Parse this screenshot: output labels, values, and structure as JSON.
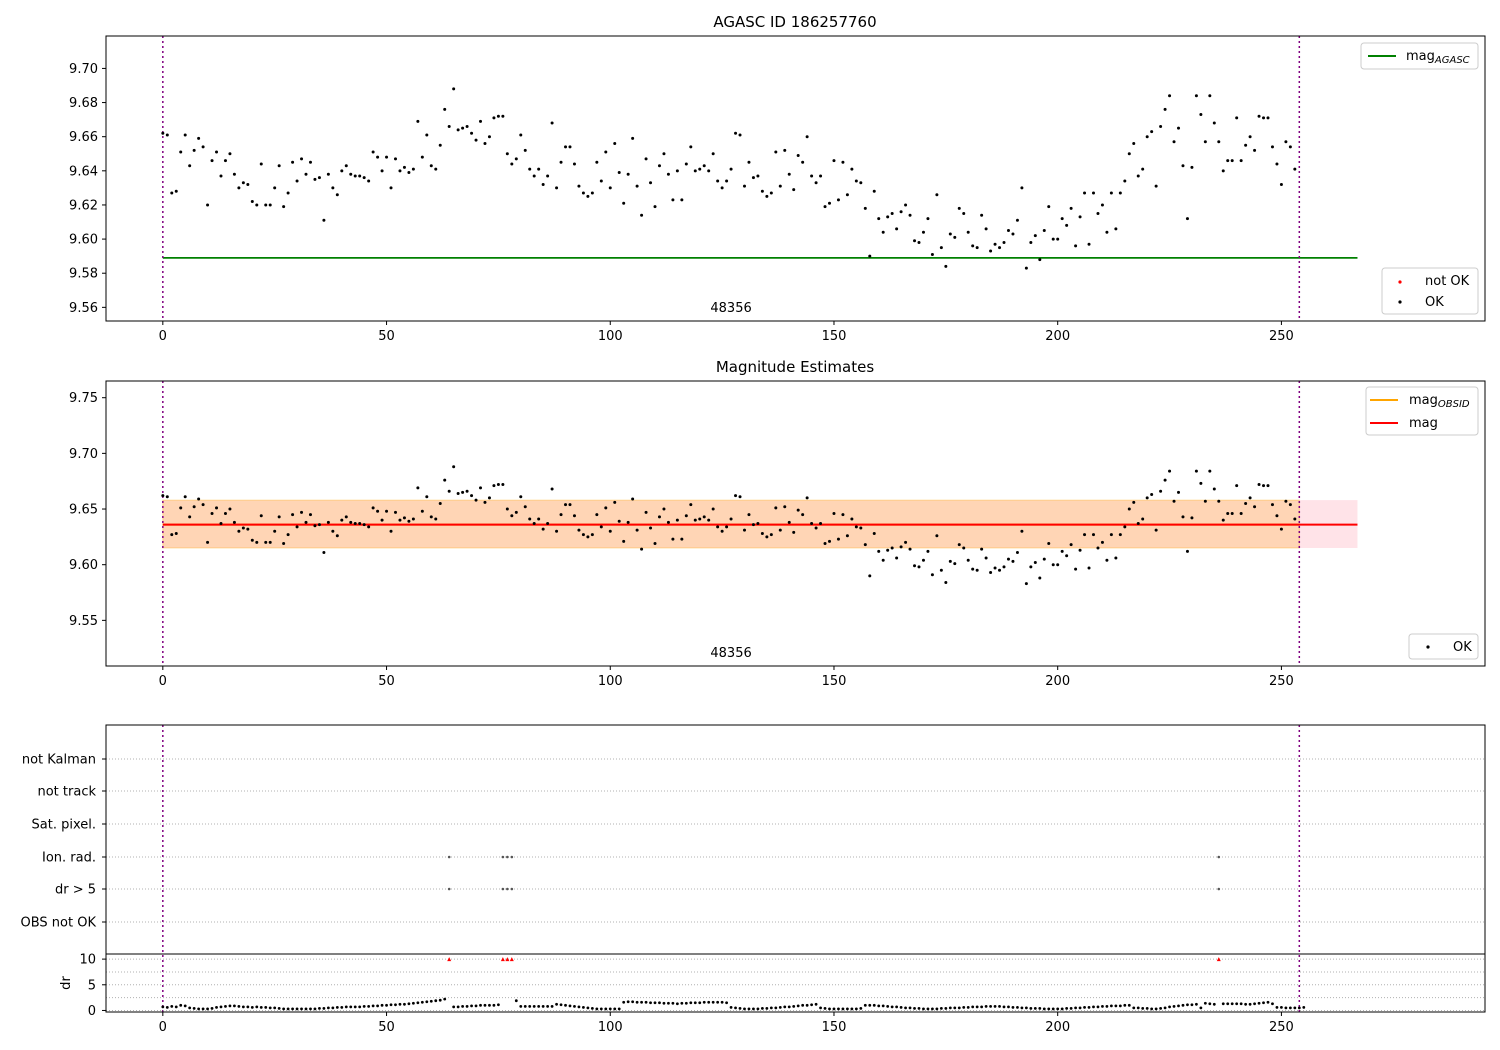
{
  "chart_data": [
    {
      "type": "scatter",
      "title": "AGASC ID 186257760",
      "xlabel": "",
      "ylabel": "",
      "xlim": [
        -12.7,
        295.5
      ],
      "ylim": [
        9.552,
        9.719
      ],
      "xticks": [
        0,
        50,
        100,
        150,
        200,
        250
      ],
      "yticks": [
        9.56,
        9.58,
        9.6,
        9.62,
        9.64,
        9.66,
        9.68,
        9.7
      ],
      "ytick_labels": [
        "9.56",
        "9.58",
        "9.60",
        "9.62",
        "9.64",
        "9.66",
        "9.68",
        "9.70"
      ],
      "obsid_label": "48356",
      "obsid_label_x": 127,
      "vlines": [
        0,
        254
      ],
      "mag_agasc": 9.589,
      "hline_range": [
        0,
        267
      ],
      "legend_lines": [
        {
          "label": "mag",
          "sub": "AGASC",
          "color": "#008000"
        }
      ],
      "legend_points": [
        {
          "label": "not OK",
          "color": "#ff0000"
        },
        {
          "label": "OK",
          "color": "#000000"
        }
      ],
      "series": [
        {
          "name": "OK",
          "color": "#000000"
        },
        {
          "name": "not OK",
          "color": "#ff0000",
          "x": [],
          "y": []
        }
      ]
    },
    {
      "type": "scatter",
      "title": "Magnitude Estimates",
      "xlabel": "",
      "ylabel": "",
      "xlim": [
        -12.7,
        295.5
      ],
      "ylim": [
        9.509,
        9.765
      ],
      "xticks": [
        0,
        50,
        100,
        150,
        200,
        250
      ],
      "yticks": [
        9.55,
        9.6,
        9.65,
        9.7,
        9.75
      ],
      "ytick_labels": [
        "9.55",
        "9.60",
        "9.65",
        "9.70",
        "9.75"
      ],
      "obsid_label": "48356",
      "obsid_label_x": 127,
      "vlines": [
        0,
        254
      ],
      "mag": 9.636,
      "mag_obsid": 9.636,
      "band": [
        9.615,
        9.658
      ],
      "hline_range": [
        0,
        267
      ],
      "legend_lines": [
        {
          "label": "mag",
          "sub": "OBSID",
          "color": "#ffa500"
        },
        {
          "label": "mag",
          "sub": "",
          "color": "#ff0000"
        }
      ],
      "legend_points": [
        {
          "label": "OK",
          "color": "#000000"
        }
      ],
      "series": [
        {
          "name": "OK",
          "color": "#000000"
        }
      ]
    },
    {
      "type": "scatter",
      "title": "",
      "xlim": [
        -12.7,
        295.5
      ],
      "xticks": [
        0,
        50,
        100,
        150,
        200,
        250
      ],
      "vlines": [
        0,
        254
      ],
      "flag_labels": [
        "not Kalman",
        "not track",
        "Sat. pixel.",
        "Ion. rad.",
        "dr > 5",
        "OBS not OK"
      ],
      "flags": {
        "Ion. rad.": [
          64,
          76,
          77,
          78,
          236
        ],
        "dr > 5": [
          64,
          76,
          77,
          78,
          236
        ]
      },
      "dr_ylabel": "dr",
      "dr_yticks": [
        0,
        5,
        10
      ],
      "dr_ylim": [
        -0.3,
        10.8
      ],
      "dr_outliers_x": [
        64,
        76,
        77,
        78,
        236
      ],
      "dr_outlier_value": 10
    }
  ],
  "mag_series_y": [
    9.662,
    9.661,
    9.627,
    9.628,
    9.651,
    9.661,
    9.643,
    9.652,
    9.659,
    9.654,
    9.62,
    9.646,
    9.651,
    9.637,
    9.646,
    9.65,
    9.638,
    9.63,
    9.633,
    9.632,
    9.622,
    9.62,
    9.644,
    9.62,
    9.62,
    9.63,
    9.643,
    9.619,
    9.627,
    9.645,
    9.634,
    9.647,
    9.638,
    9.645,
    9.635,
    9.636,
    9.611,
    9.638,
    9.63,
    9.626,
    9.64,
    9.643,
    9.638,
    9.637,
    9.637,
    9.636,
    9.634,
    9.651,
    9.648,
    9.64,
    9.648,
    9.63,
    9.647,
    9.64,
    9.642,
    9.639,
    9.641,
    9.669,
    9.648,
    9.661,
    9.643,
    9.641,
    9.655,
    9.676,
    9.666,
    9.688,
    9.664,
    9.665,
    9.666,
    9.662,
    9.658,
    9.669,
    9.656,
    9.66,
    9.671,
    9.672,
    9.672,
    9.65,
    9.644,
    9.647,
    9.661,
    9.652,
    9.641,
    9.637,
    9.641,
    9.632,
    9.637,
    9.668,
    9.63,
    9.645,
    9.654,
    9.654,
    9.644,
    9.631,
    9.627,
    9.625,
    9.627,
    9.645,
    9.634,
    9.651,
    9.63,
    9.656,
    9.639,
    9.621,
    9.638,
    9.659,
    9.631,
    9.614,
    9.647,
    9.633,
    9.619,
    9.643,
    9.65,
    9.638,
    9.623,
    9.64,
    9.623,
    9.644,
    9.654,
    9.64,
    9.641,
    9.643,
    9.64,
    9.65,
    9.634,
    9.63,
    9.634,
    9.641,
    9.662,
    9.661,
    9.631,
    9.645,
    9.636,
    9.637,
    9.628,
    9.625,
    9.627,
    9.651,
    9.631,
    9.652,
    9.638,
    9.629,
    9.649,
    9.645,
    9.66,
    9.637,
    9.633,
    9.637,
    9.619,
    9.621,
    9.646,
    9.623,
    9.645,
    9.626,
    9.641,
    9.634,
    9.633,
    9.618,
    9.59,
    9.628,
    9.612,
    9.604,
    9.613,
    9.615,
    9.606,
    9.616,
    9.62,
    9.614,
    9.599,
    9.598,
    9.604,
    9.612,
    9.591,
    9.626,
    9.595,
    9.584,
    9.603,
    9.601,
    9.618,
    9.615,
    9.604,
    9.596,
    9.595,
    9.614,
    9.606,
    9.593,
    9.597,
    9.595,
    9.598,
    9.605,
    9.603,
    9.611,
    9.63,
    9.583,
    9.598,
    9.602,
    9.588,
    9.605,
    9.619,
    9.6,
    9.6,
    9.612,
    9.608,
    9.618,
    9.596,
    9.613,
    9.627,
    9.597,
    9.627,
    9.615,
    9.62,
    9.604,
    9.627,
    9.606,
    9.627,
    9.634,
    9.65,
    9.656,
    9.637,
    9.641,
    9.66,
    9.663,
    9.631,
    9.666,
    9.676,
    9.684,
    9.657,
    9.665,
    9.643,
    9.612,
    9.642,
    9.684,
    9.673,
    9.657,
    9.684,
    9.668,
    9.657,
    9.64,
    9.646,
    9.646,
    9.671,
    9.646,
    9.655,
    9.66,
    9.652,
    9.672,
    9.671,
    9.671,
    9.654,
    9.644,
    9.632,
    9.657,
    9.654,
    9.641
  ],
  "dr_series_y": [
    0.7,
    0.6,
    0.8,
    0.7,
    1.0,
    0.9,
    0.5,
    0.4,
    0.3,
    0.3,
    0.3,
    0.4,
    0.6,
    0.7,
    0.8,
    0.9,
    0.9,
    0.8,
    0.7,
    0.7,
    0.6,
    0.7,
    0.6,
    0.6,
    0.5,
    0.5,
    0.4,
    0.3,
    0.3,
    0.3,
    0.3,
    0.3,
    0.3,
    0.3,
    0.3,
    0.4,
    0.4,
    0.5,
    0.5,
    0.6,
    0.6,
    0.7,
    0.7,
    0.7,
    0.7,
    0.8,
    0.8,
    0.9,
    0.9,
    1.0,
    1.0,
    1.1,
    1.1,
    1.2,
    1.2,
    1.3,
    1.4,
    1.5,
    1.6,
    1.7,
    1.8,
    1.9,
    2.0,
    2.2,
    10,
    0.7,
    0.7,
    0.8,
    0.8,
    0.9,
    0.9,
    1.0,
    1.0,
    1.0,
    1.0,
    1.1,
    10,
    10,
    10,
    1.9,
    0.8,
    0.8,
    0.8,
    0.8,
    0.8,
    0.8,
    0.8,
    0.8,
    1.2,
    1.1,
    1.0,
    0.9,
    0.8,
    0.7,
    0.6,
    0.5,
    0.4,
    0.3,
    0.3,
    0.3,
    0.3,
    0.3,
    0.3,
    1.6,
    1.7,
    1.7,
    1.6,
    1.6,
    1.6,
    1.5,
    1.5,
    1.5,
    1.4,
    1.4,
    1.4,
    1.3,
    1.4,
    1.4,
    1.5,
    1.5,
    1.5,
    1.6,
    1.6,
    1.6,
    1.6,
    1.6,
    1.5,
    0.6,
    0.5,
    0.4,
    0.3,
    0.3,
    0.3,
    0.3,
    0.4,
    0.4,
    0.5,
    0.5,
    0.6,
    0.7,
    0.7,
    0.8,
    0.9,
    1.0,
    1.0,
    1.1,
    1.2,
    0.5,
    0.4,
    0.3,
    0.3,
    0.3,
    0.3,
    0.3,
    0.3,
    0.3,
    0.4,
    1.0,
    1.0,
    1.0,
    0.9,
    0.9,
    0.8,
    0.7,
    0.7,
    0.6,
    0.5,
    0.5,
    0.4,
    0.4,
    0.3,
    0.3,
    0.3,
    0.3,
    0.4,
    0.4,
    0.5,
    0.5,
    0.5,
    0.6,
    0.6,
    0.7,
    0.7,
    0.7,
    0.8,
    0.8,
    0.8,
    0.8,
    0.7,
    0.7,
    0.6,
    0.6,
    0.5,
    0.5,
    0.4,
    0.4,
    0.4,
    0.3,
    0.3,
    0.3,
    0.3,
    0.3,
    0.4,
    0.4,
    0.5,
    0.5,
    0.6,
    0.6,
    0.7,
    0.7,
    0.8,
    0.8,
    0.9,
    0.9,
    0.9,
    1.0,
    1.0,
    0.5,
    0.5,
    0.4,
    0.4,
    0.3,
    0.3,
    0.4,
    0.5,
    0.7,
    0.8,
    0.9,
    1.0,
    1.1,
    1.1,
    1.2,
    0.5,
    1.4,
    1.3,
    1.2,
    10,
    1.3,
    1.3,
    1.3,
    1.3,
    1.3,
    1.2,
    1.2,
    1.3,
    1.4,
    1.5,
    1.6,
    1.3,
    0.6,
    0.6,
    0.5,
    0.5,
    0.5,
    0.5,
    0.6
  ]
}
